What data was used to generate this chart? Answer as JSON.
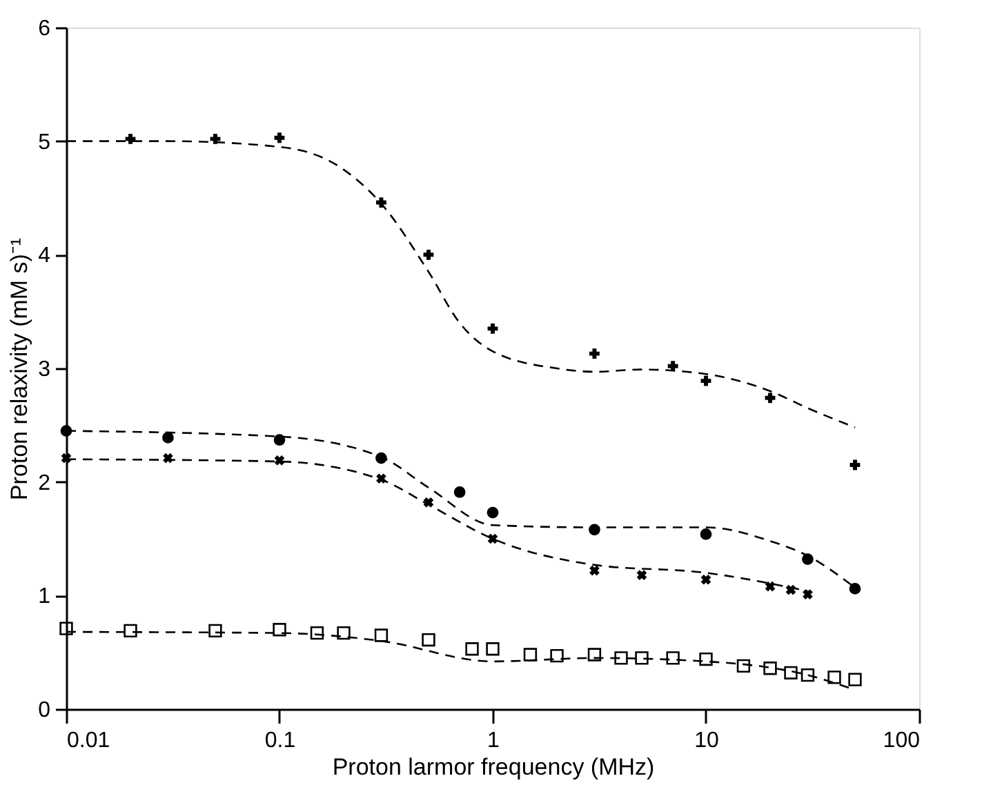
{
  "chart_data": {
    "type": "scatter",
    "xlabel": "Proton larmor frequency (MHz)",
    "ylabel": "Proton relaxivity (mM s)⁻¹",
    "log": "x",
    "xlim": [
      0.01,
      100
    ],
    "xticks": [
      0.01,
      0.1,
      1,
      10,
      100
    ],
    "ylim": [
      0,
      6
    ],
    "yticks": [
      0,
      1,
      2,
      3,
      4,
      5,
      6
    ],
    "grid": false,
    "series": [
      {
        "type": "line",
        "line_style": "dashed",
        "color": "#000000",
        "x": [
          0.01,
          0.03,
          0.1,
          0.2,
          0.3,
          0.5,
          0.7,
          1,
          2,
          3,
          5,
          10,
          20,
          30,
          50
        ],
        "values": [
          5.0,
          5.0,
          4.95,
          4.75,
          4.45,
          3.85,
          3.4,
          3.15,
          3.0,
          2.97,
          2.99,
          2.95,
          2.8,
          2.65,
          2.48
        ]
      },
      {
        "type": "line",
        "line_style": "dashed",
        "color": "#000000",
        "x": [
          0.01,
          0.1,
          0.3,
          0.5,
          1,
          3,
          10,
          20,
          30,
          50
        ],
        "values": [
          2.45,
          2.4,
          2.22,
          1.95,
          1.62,
          1.6,
          1.6,
          1.48,
          1.35,
          1.07
        ]
      },
      {
        "type": "line",
        "line_style": "dashed",
        "color": "#000000",
        "x": [
          0.01,
          0.1,
          0.3,
          0.5,
          1,
          3,
          10,
          30
        ],
        "values": [
          2.2,
          2.18,
          2.02,
          1.8,
          1.5,
          1.27,
          1.2,
          1.04
        ]
      },
      {
        "type": "line",
        "line_style": "dashed",
        "color": "#000000",
        "x": [
          0.01,
          0.1,
          0.3,
          1,
          3,
          10,
          30,
          50
        ],
        "values": [
          0.68,
          0.67,
          0.6,
          0.42,
          0.45,
          0.42,
          0.3,
          0.17
        ]
      },
      {
        "marker": "cross",
        "color": "#000000",
        "x": [
          0.02,
          0.05,
          0.1,
          0.3,
          0.5,
          1,
          3,
          7,
          10,
          20,
          50
        ],
        "values": [
          5.02,
          5.02,
          5.03,
          4.46,
          4.0,
          3.35,
          3.13,
          3.02,
          2.89,
          2.74,
          2.15
        ]
      },
      {
        "marker": "circle",
        "color": "#000000",
        "x": [
          0.01,
          0.03,
          0.1,
          0.3,
          0.7,
          1,
          3,
          10,
          30,
          50
        ],
        "values": [
          2.45,
          2.39,
          2.37,
          2.21,
          1.91,
          1.73,
          1.58,
          1.54,
          1.32,
          1.06
        ]
      },
      {
        "marker": "cross",
        "color": "#000000",
        "x": [
          0.01,
          0.03,
          0.1,
          0.3,
          0.5,
          1,
          3,
          5,
          10,
          20,
          25,
          30
        ],
        "values": [
          2.21,
          2.21,
          2.19,
          2.03,
          1.82,
          1.5,
          1.22,
          1.18,
          1.14,
          1.08,
          1.05,
          1.01
        ]
      },
      {
        "marker": "square",
        "color": "#000000",
        "x": [
          0.01,
          0.02,
          0.05,
          0.1,
          0.15,
          0.2,
          0.3,
          0.5,
          0.8,
          1,
          1.5,
          2,
          3,
          4,
          5,
          7,
          10,
          15,
          20,
          25,
          30,
          40,
          50
        ],
        "values": [
          0.71,
          0.69,
          0.69,
          0.7,
          0.67,
          0.67,
          0.65,
          0.61,
          0.53,
          0.53,
          0.48,
          0.47,
          0.48,
          0.45,
          0.45,
          0.45,
          0.44,
          0.38,
          0.36,
          0.32,
          0.3,
          0.28,
          0.26
        ]
      }
    ]
  }
}
